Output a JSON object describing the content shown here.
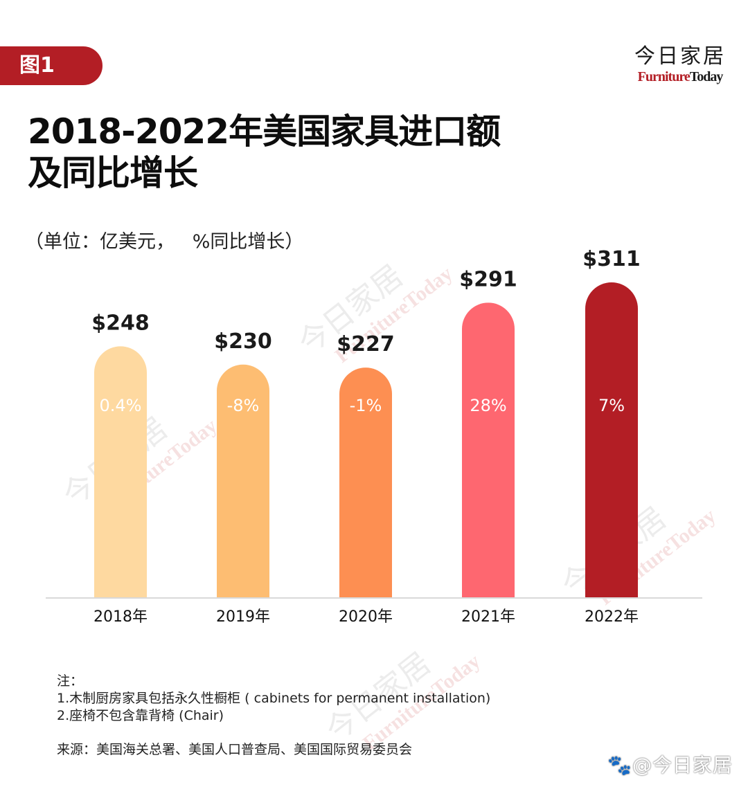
{
  "header": {
    "figure_tag": "图1",
    "brand_cn": "今日家居",
    "brand_en_red": "Furniture",
    "brand_en_dark": "Today",
    "title_line1": "2018-2022年美国家具进口额",
    "title_line2": "及同比增长",
    "unit_note": "（单位：亿美元，   %同比增长）"
  },
  "colors": {
    "accent": "#b31e25",
    "bars": [
      "#fed9a0",
      "#fdbd72",
      "#fd8f52",
      "#fe6770",
      "#b31e25"
    ],
    "axis": "#d9d9d9"
  },
  "chart_data": {
    "type": "bar",
    "title": "2018-2022年美国家具进口额及同比增长",
    "xlabel": "",
    "ylabel": "亿美元",
    "ylim": [
      0,
      311
    ],
    "grid": false,
    "categories": [
      "2018年",
      "2019年",
      "2020年",
      "2021年",
      "2022年"
    ],
    "values": [
      248,
      230,
      227,
      291,
      311
    ],
    "value_labels": [
      "$248",
      "$230",
      "$227",
      "$291",
      "$311"
    ],
    "growth_labels": [
      "0.4%",
      "-8%",
      "-1%",
      "28%",
      "7%"
    ],
    "growth_values": [
      0.4,
      -8,
      -1,
      28,
      7
    ]
  },
  "watermark": {
    "cn": "今日家居",
    "en": "FurnitureToday"
  },
  "notes": {
    "heading": "注：",
    "items": [
      "1.木制厨房家具包括永久性橱柜 ( cabinets for permanent installation)",
      "2.座椅不包含靠背椅 (Chair)"
    ],
    "source": "来源：美国海关总署、美国人口普查局、美国国际贸易委员会"
  },
  "footer": {
    "platform_watermark": "🐾@今日家居"
  }
}
